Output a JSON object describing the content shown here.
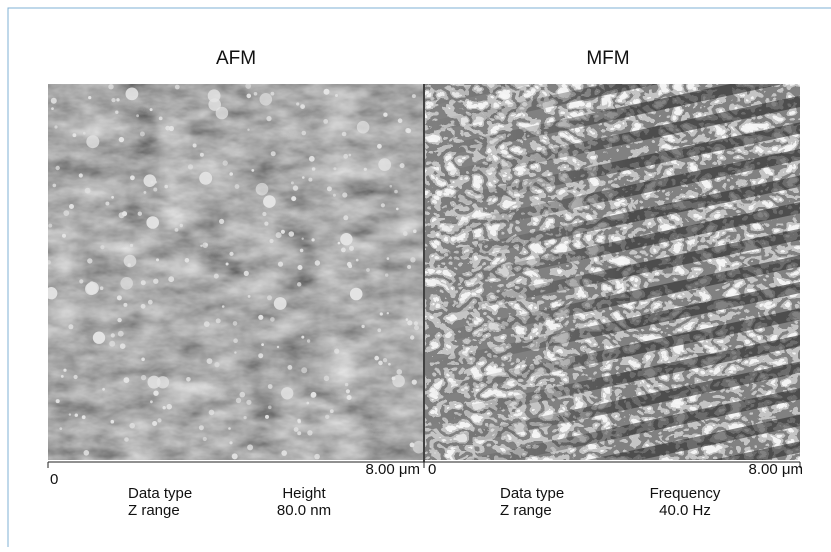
{
  "panels": [
    {
      "title": "AFM",
      "axis_start": "0",
      "axis_end": "8.00 μm",
      "data_type_label": "Data type",
      "data_type_value": "Height",
      "z_range_label": "Z range",
      "z_range_value": "80.0 nm"
    },
    {
      "title": "MFM",
      "axis_start": "0",
      "axis_end": "8.00 μm",
      "data_type_label": "Data type",
      "data_type_value": "Frequency",
      "z_range_label": "Z range",
      "z_range_value": "40.0 Hz"
    }
  ]
}
